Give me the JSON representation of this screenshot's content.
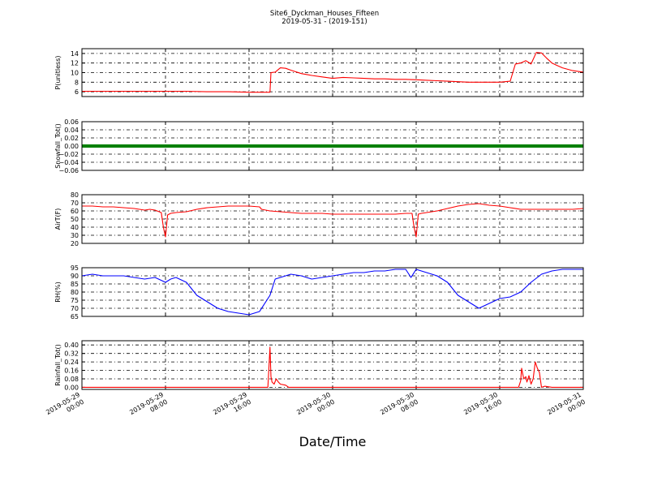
{
  "title_line1": "Site6_Dyckman_Houses_Fifteen",
  "title_line2": "2019-05-31 - (2019-151)",
  "xlabel": "Date/Time",
  "x_ticks": [
    [
      "2019-05-29",
      "00:00"
    ],
    [
      "2019-05-29",
      "08:00"
    ],
    [
      "2019-05-29",
      "16:00"
    ],
    [
      "2019-05-30",
      "00:00"
    ],
    [
      "2019-05-30",
      "08:00"
    ],
    [
      "2019-05-30",
      "16:00"
    ],
    [
      "2019-05-31",
      "00:00"
    ]
  ],
  "chart_data": [
    {
      "type": "line",
      "ylabel": "P(unitless)",
      "color": "#ff0000",
      "ylim": [
        5,
        15
      ],
      "yticks": [
        6,
        8,
        10,
        12,
        14
      ],
      "ytick_labels": [
        "6",
        "8",
        "10",
        "12",
        "14"
      ],
      "grid": true,
      "x_unit": "hours since 2019-05-29 00:00",
      "x": [
        0,
        2,
        4,
        6,
        8,
        10,
        12,
        14,
        16,
        17,
        18,
        18.1,
        18.5,
        19,
        19.5,
        20,
        21,
        22,
        23,
        24,
        25,
        26,
        27,
        28,
        29,
        30,
        31,
        32,
        33,
        34,
        35,
        36,
        37,
        38,
        39,
        40,
        41,
        41.5,
        42,
        42.5,
        43,
        43.5,
        44,
        44.5,
        45,
        45.5,
        46,
        46.5,
        47,
        48
      ],
      "values": [
        6.1,
        6.1,
        6.1,
        6.1,
        6.1,
        6.1,
        6.0,
        6.0,
        5.9,
        5.9,
        5.9,
        10.0,
        10.1,
        11.0,
        10.9,
        10.5,
        9.8,
        9.4,
        9.1,
        8.8,
        9.0,
        8.9,
        8.8,
        8.7,
        8.7,
        8.6,
        8.6,
        8.5,
        8.4,
        8.3,
        8.2,
        8.1,
        8.0,
        8.0,
        8.0,
        8.0,
        8.2,
        11.8,
        12.0,
        12.5,
        11.8,
        14.2,
        14.1,
        13.0,
        12.0,
        11.5,
        11.0,
        10.7,
        10.4,
        10.1
      ]
    },
    {
      "type": "line",
      "ylabel": "Snowfall_Tot()",
      "color": "#008000",
      "ylim": [
        -0.06,
        0.06
      ],
      "yticks": [
        -0.06,
        -0.04,
        -0.02,
        0.0,
        0.02,
        0.04,
        0.06
      ],
      "ytick_labels": [
        "−0.06",
        "−0.04",
        "−0.02",
        "0.00",
        "0.02",
        "0.04",
        "0.06"
      ],
      "grid": true,
      "x_unit": "hours since 2019-05-29 00:00",
      "x": [
        0,
        48
      ],
      "values": [
        0,
        0
      ]
    },
    {
      "type": "line",
      "ylabel": "AirT(F)",
      "color": "#ff0000",
      "ylim": [
        20,
        80
      ],
      "yticks": [
        20,
        30,
        40,
        50,
        60,
        70,
        80
      ],
      "ytick_labels": [
        "20",
        "30",
        "40",
        "50",
        "60",
        "70",
        "80"
      ],
      "grid": true,
      "x_unit": "hours since 2019-05-29 00:00",
      "x": [
        0,
        1,
        2,
        3,
        4,
        5,
        6,
        6.5,
        7,
        7.6,
        7.8,
        8.0,
        8.2,
        8.5,
        9,
        10,
        11,
        12,
        13,
        14,
        15,
        16,
        17,
        17.2,
        18,
        19,
        20,
        21,
        22,
        23,
        24,
        25,
        26,
        27,
        28,
        29,
        30,
        31,
        31.6,
        31.8,
        32.0,
        32.2,
        32.5,
        33,
        34,
        35,
        36,
        37,
        38,
        39,
        40,
        41,
        42,
        43,
        44,
        45,
        46,
        47,
        48
      ],
      "values": [
        66,
        66,
        65,
        65,
        64,
        63,
        61,
        62,
        61,
        58,
        40,
        28,
        55,
        57,
        58,
        59,
        62,
        64,
        65,
        66,
        66,
        66,
        65,
        62,
        60,
        59,
        58,
        57,
        57,
        57,
        56,
        56,
        56,
        56,
        56,
        56,
        56,
        57,
        57,
        40,
        28,
        56,
        57,
        58,
        60,
        63,
        66,
        68,
        69,
        67,
        66,
        64,
        62,
        62,
        62,
        62,
        62,
        62,
        63
      ]
    },
    {
      "type": "line",
      "ylabel": "RH(%)",
      "color": "#0000ff",
      "ylim": [
        65,
        95
      ],
      "yticks": [
        65,
        70,
        75,
        80,
        85,
        90,
        95
      ],
      "ytick_labels": [
        "65",
        "70",
        "75",
        "80",
        "85",
        "90",
        "95"
      ],
      "grid": true,
      "x_unit": "hours since 2019-05-29 00:00",
      "x": [
        0,
        1,
        2,
        3,
        4,
        5,
        6,
        7,
        8,
        8.5,
        9,
        10,
        11,
        12,
        13,
        14,
        15,
        16,
        17,
        18,
        18.5,
        19,
        20,
        21,
        22,
        23,
        24,
        25,
        26,
        27,
        28,
        29,
        30,
        31,
        31.5,
        32,
        32.5,
        33,
        34,
        35,
        36,
        37,
        38,
        39,
        40,
        41,
        42,
        43,
        44,
        45,
        46,
        47,
        48
      ],
      "values": [
        90,
        91,
        90,
        90,
        90,
        89,
        88,
        89,
        86,
        88,
        89,
        86,
        78,
        74,
        70,
        68,
        67,
        66,
        68,
        78,
        88,
        89,
        91,
        90,
        88,
        89,
        90,
        91,
        92,
        92,
        93,
        93,
        94,
        94,
        89,
        94,
        93,
        92,
        90,
        86,
        78,
        74,
        70,
        73,
        76,
        77,
        80,
        86,
        91,
        93,
        94,
        94,
        94
      ]
    },
    {
      "type": "line",
      "ylabel": "Rainfall_Tot()",
      "color": "#ff0000",
      "ylim": [
        -0.02,
        0.44
      ],
      "yticks": [
        0.0,
        0.08,
        0.16,
        0.24,
        0.32,
        0.4
      ],
      "ytick_labels": [
        "0.00",
        "0.08",
        "0.16",
        "0.24",
        "0.32",
        "0.40"
      ],
      "grid": true,
      "x_unit": "hours since 2019-05-29 00:00",
      "x": [
        0,
        17.8,
        18.0,
        18.1,
        18.2,
        18.4,
        18.6,
        18.8,
        19.0,
        19.5,
        19.8,
        20.0,
        20.2,
        41.8,
        42.0,
        42.1,
        42.3,
        42.5,
        42.6,
        42.8,
        43.0,
        43.2,
        43.4,
        43.6,
        43.8,
        44.0,
        44.3,
        45.0,
        48
      ],
      "values": [
        0,
        0,
        0.38,
        0.1,
        0.05,
        0.03,
        0.08,
        0.05,
        0.03,
        0.02,
        0.0,
        0.0,
        0.0,
        0.0,
        0.06,
        0.18,
        0.08,
        0.1,
        0.05,
        0.11,
        0.03,
        0.08,
        0.24,
        0.18,
        0.14,
        0.0,
        0.01,
        0.0,
        0.0
      ]
    }
  ]
}
